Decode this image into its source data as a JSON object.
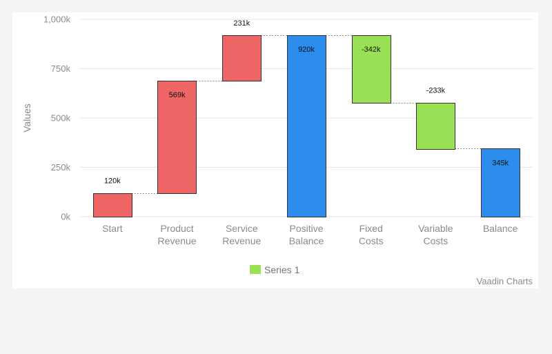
{
  "chart_data": {
    "type": "waterfall",
    "yaxis_title": "Values",
    "ylim": [
      0,
      1000000
    ],
    "yticks": [
      0,
      250000,
      500000,
      750000,
      1000000
    ],
    "ytick_labels": [
      "0k",
      "250k",
      "500k",
      "750k",
      "1,000k"
    ],
    "grid": true,
    "categories": [
      [
        "Start"
      ],
      [
        "Product",
        "Revenue"
      ],
      [
        "Service",
        "Revenue"
      ],
      [
        "Positive",
        "Balance"
      ],
      [
        "Fixed",
        "Costs"
      ],
      [
        "Variable",
        "Costs"
      ],
      [
        "Balance"
      ]
    ],
    "bars": [
      {
        "value": 120000,
        "label": "120k",
        "kind": "increase",
        "from": 0,
        "to": 120000
      },
      {
        "value": 569000,
        "label": "569k",
        "kind": "increase",
        "from": 120000,
        "to": 689000
      },
      {
        "value": 231000,
        "label": "231k",
        "kind": "increase",
        "from": 689000,
        "to": 920000
      },
      {
        "value": 920000,
        "label": "920k",
        "kind": "sum",
        "from": 0,
        "to": 920000
      },
      {
        "value": -342000,
        "label": "-342k",
        "kind": "decrease",
        "from": 578000,
        "to": 920000
      },
      {
        "value": -233000,
        "label": "-233k",
        "kind": "decrease",
        "from": 345000,
        "to": 578000
      },
      {
        "value": 345000,
        "label": "345k",
        "kind": "sum",
        "from": 0,
        "to": 345000
      }
    ],
    "colors": {
      "increase": "#ee6666",
      "decrease": "#99e055",
      "sum": "#2d8ded"
    },
    "legend": {
      "placement": "bottom-center",
      "items": [
        {
          "name": "Series 1",
          "color": "#99e055"
        }
      ]
    },
    "credits": "Vaadin Charts"
  }
}
